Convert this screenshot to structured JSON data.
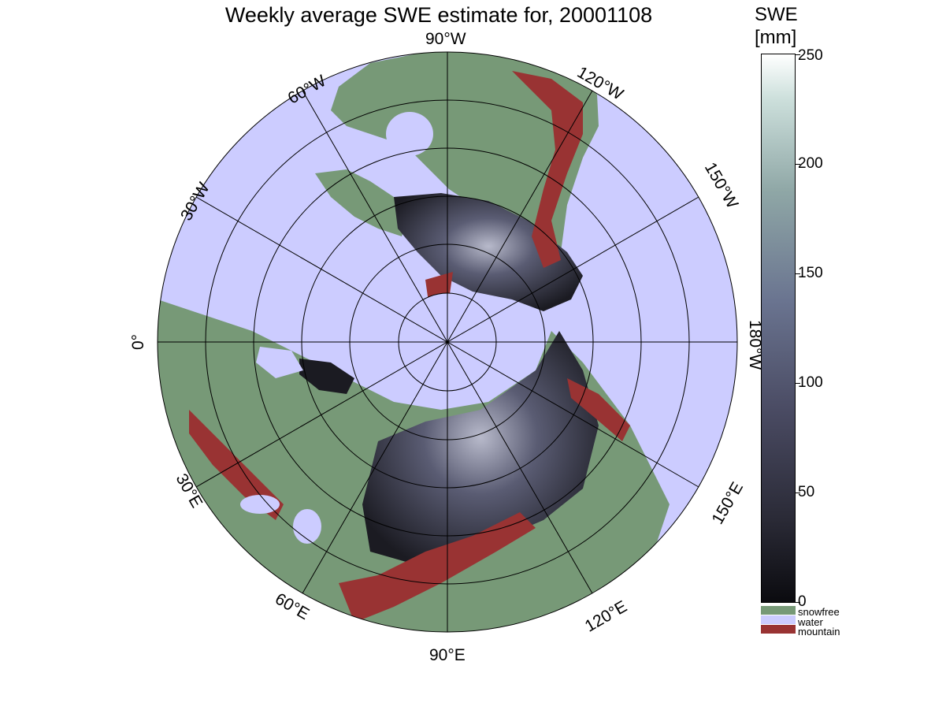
{
  "title": "Weekly average SWE estimate for, 20001108",
  "map": {
    "projection": "north-polar-stereographic",
    "longitude_labels": [
      "90°W",
      "60°W",
      "120°W",
      "30°W",
      "150°W",
      "0°",
      "180°W",
      "30°E",
      "150°E",
      "60°E",
      "120°E",
      "90°E"
    ],
    "colors": {
      "water": "#ccccff",
      "snowfree": "#779977",
      "mountain": "#993333",
      "snow_low": "#1b1b22",
      "snow_high": "#b8bacb"
    }
  },
  "colorbar": {
    "title_line1": "SWE",
    "title_line2": "[mm]",
    "ticks": [
      "0",
      "50",
      "100",
      "150",
      "200",
      "250"
    ],
    "range": [
      0,
      250
    ],
    "legend": [
      {
        "label": "snowfree",
        "color": "#779977"
      },
      {
        "label": "water",
        "color": "#ccccff"
      },
      {
        "label": "mountain",
        "color": "#993333"
      }
    ]
  }
}
